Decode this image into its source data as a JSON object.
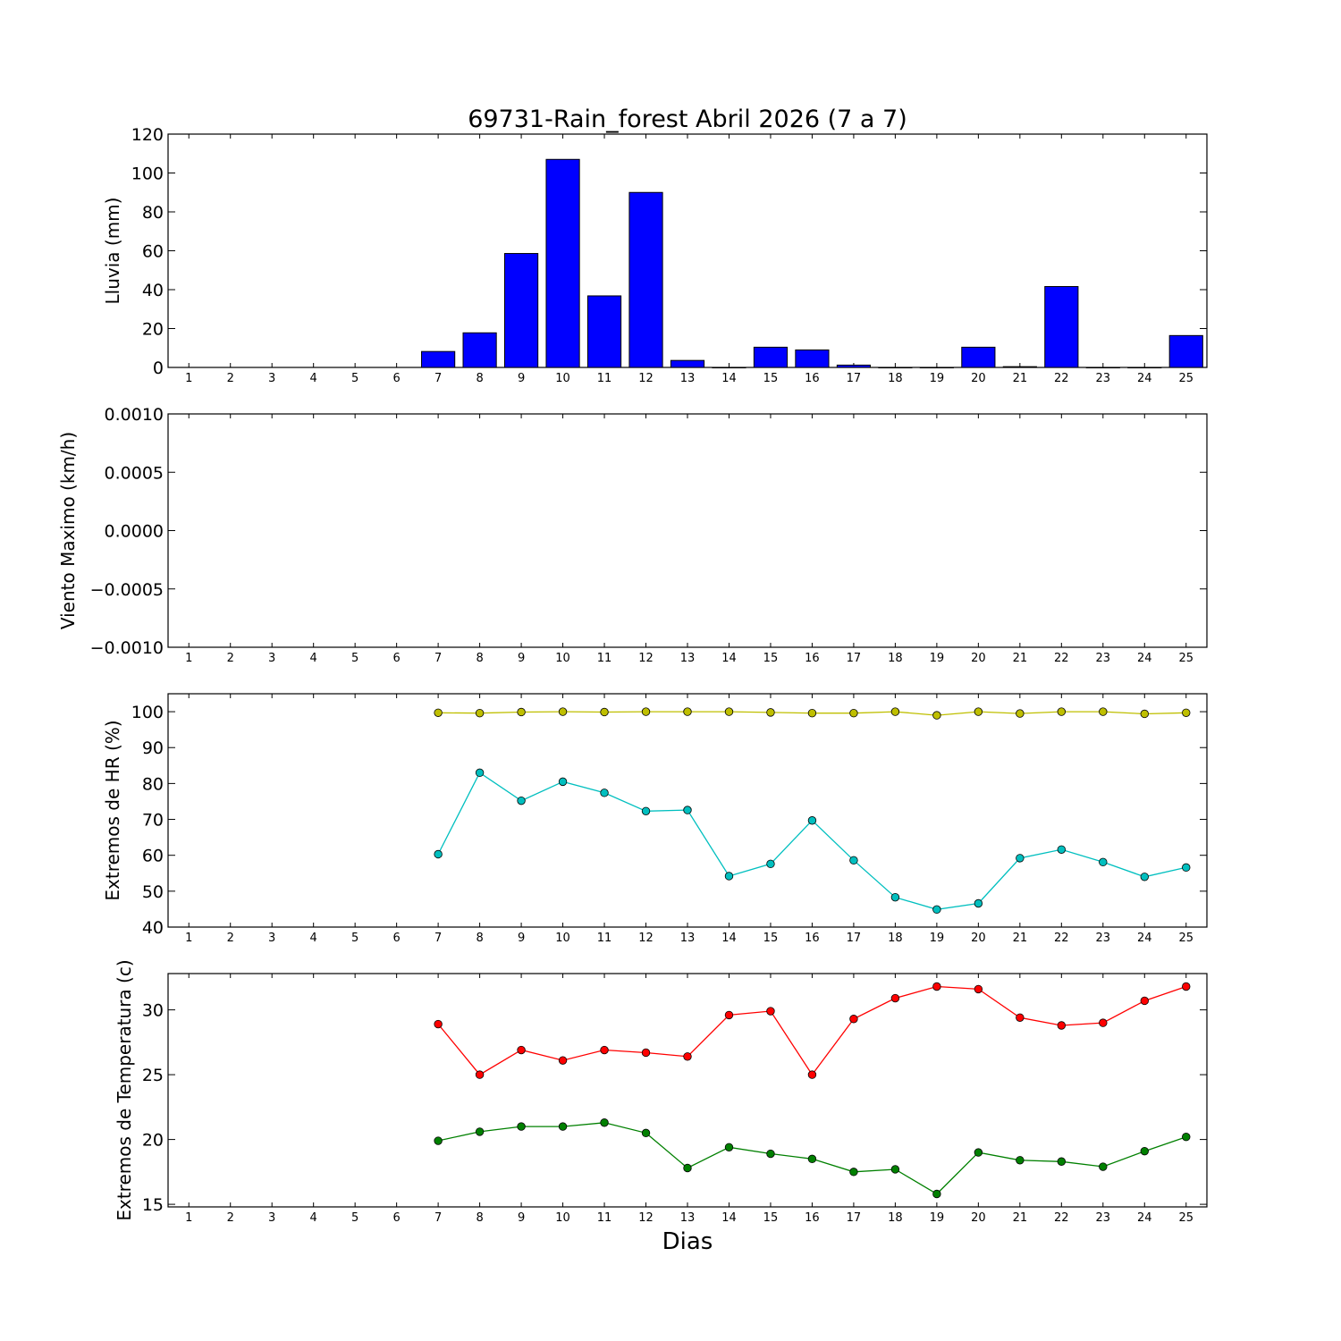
{
  "chart_data": {
    "title": "69731-Rain_forest Abril 2026  (7 a 7)",
    "xlabel": "Dias",
    "days": [
      1,
      2,
      3,
      4,
      5,
      6,
      7,
      8,
      9,
      10,
      11,
      12,
      13,
      14,
      15,
      16,
      17,
      18,
      19,
      20,
      21,
      22,
      23,
      24,
      25
    ],
    "panels": [
      {
        "type": "bar",
        "ylabel": "Lluvia (mm)",
        "ylim": [
          0,
          120
        ],
        "yticks": [
          "0",
          "20",
          "40",
          "60",
          "80",
          "100",
          "120"
        ],
        "yticks_values": [
          0,
          20,
          40,
          60,
          80,
          100,
          120
        ],
        "series": [
          {
            "color": "#0000ff",
            "values": [
              null,
              null,
              null,
              null,
              null,
              null,
              8.2,
              17.8,
              58.6,
              107,
              36.8,
              90,
              3.6,
              0,
              10.4,
              9,
              1.2,
              0,
              0,
              10.4,
              0.4,
              41.6,
              0,
              0,
              16.4
            ]
          }
        ]
      },
      {
        "type": "line",
        "ylabel": "Viento Maximo (km/h)",
        "ylim": [
          -0.001,
          0.001
        ],
        "yticks": [
          "−0.0010",
          "−0.0005",
          "0.0000",
          "0.0005",
          "0.0010"
        ],
        "yticks_values": [
          -0.001,
          -0.0005,
          0,
          0.0005,
          0.001
        ],
        "series": []
      },
      {
        "type": "line",
        "ylabel": "Extremos de HR (%)",
        "ylim": [
          40,
          105
        ],
        "yticks": [
          "40",
          "50",
          "60",
          "70",
          "80",
          "90",
          "100"
        ],
        "yticks_values": [
          40,
          50,
          60,
          70,
          80,
          90,
          100
        ],
        "series": [
          {
            "color": "#bfbf00",
            "values": [
              null,
              null,
              null,
              null,
              null,
              null,
              99.7,
              99.6,
              99.9,
              100,
              99.9,
              100,
              100,
              100,
              99.8,
              99.6,
              99.6,
              100,
              99,
              100,
              99.5,
              100,
              100,
              99.4,
              99.7
            ]
          },
          {
            "color": "#00bfbf",
            "values": [
              null,
              null,
              null,
              null,
              null,
              null,
              60.3,
              83,
              75.2,
              80.5,
              77.4,
              72.3,
              72.6,
              54.2,
              57.6,
              69.7,
              58.6,
              48.3,
              44.9,
              46.6,
              59.2,
              61.6,
              58.1,
              54,
              56.6
            ]
          }
        ]
      },
      {
        "type": "line",
        "ylabel": "Extremos de Temperatura (c)",
        "ylim": [
          14.8,
          32.8
        ],
        "yticks": [
          "15",
          "20",
          "25",
          "30"
        ],
        "yticks_values": [
          15,
          20,
          25,
          30
        ],
        "series": [
          {
            "color": "#ff0000",
            "values": [
              null,
              null,
              null,
              null,
              null,
              null,
              28.9,
              25,
              26.9,
              26.1,
              26.9,
              26.7,
              26.4,
              29.6,
              29.9,
              25,
              29.3,
              30.9,
              31.8,
              31.6,
              29.4,
              28.8,
              29,
              30.7,
              31.8
            ]
          },
          {
            "color": "#008000",
            "values": [
              null,
              null,
              null,
              null,
              null,
              null,
              19.9,
              20.6,
              21,
              21,
              21.3,
              20.5,
              17.8,
              19.4,
              18.9,
              18.5,
              17.5,
              17.7,
              15.8,
              19,
              18.4,
              18.3,
              17.9,
              19.1,
              20.2
            ]
          }
        ]
      }
    ]
  }
}
